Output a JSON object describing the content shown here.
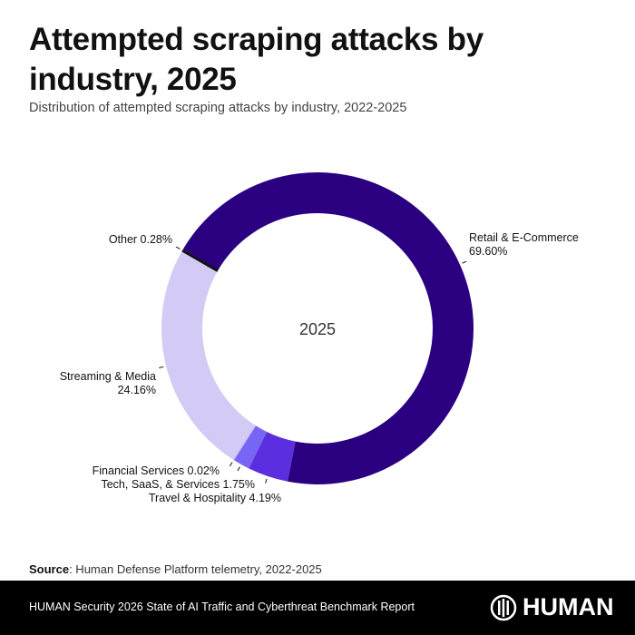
{
  "title": "Attempted scraping attacks by industry, 2025",
  "subtitle": "Distribution of attempted scraping attacks by industry, 2022-2025",
  "source_label": "Source",
  "source_text": ": Human Defense Platform telemetry, 2022-2025",
  "footer_text": "HUMAN Security 2026 State of AI Traffic and Cyberthreat Benchmark Report",
  "logo_text": "HUMAN",
  "chart_data": {
    "type": "pie",
    "donut": true,
    "center_label": "2025",
    "slices": [
      {
        "name": "Retail & E-Commerce",
        "value": 69.6,
        "label": "69.60%",
        "color": "#2a0080"
      },
      {
        "name": "Travel & Hospitality",
        "value": 4.19,
        "label": "4.19%",
        "color": "#5b2ee0"
      },
      {
        "name": "Tech, SaaS, & Services",
        "value": 1.75,
        "label": "1.75%",
        "color": "#7766f5"
      },
      {
        "name": "Financial Services",
        "value": 0.02,
        "label": "0.02%",
        "color": "#9e94f5"
      },
      {
        "name": "Streaming & Media",
        "value": 24.16,
        "label": "24.16%",
        "color": "#d3cbf5"
      },
      {
        "name": "Other",
        "value": 0.28,
        "label": "0.28%",
        "color": "#111111"
      }
    ]
  }
}
